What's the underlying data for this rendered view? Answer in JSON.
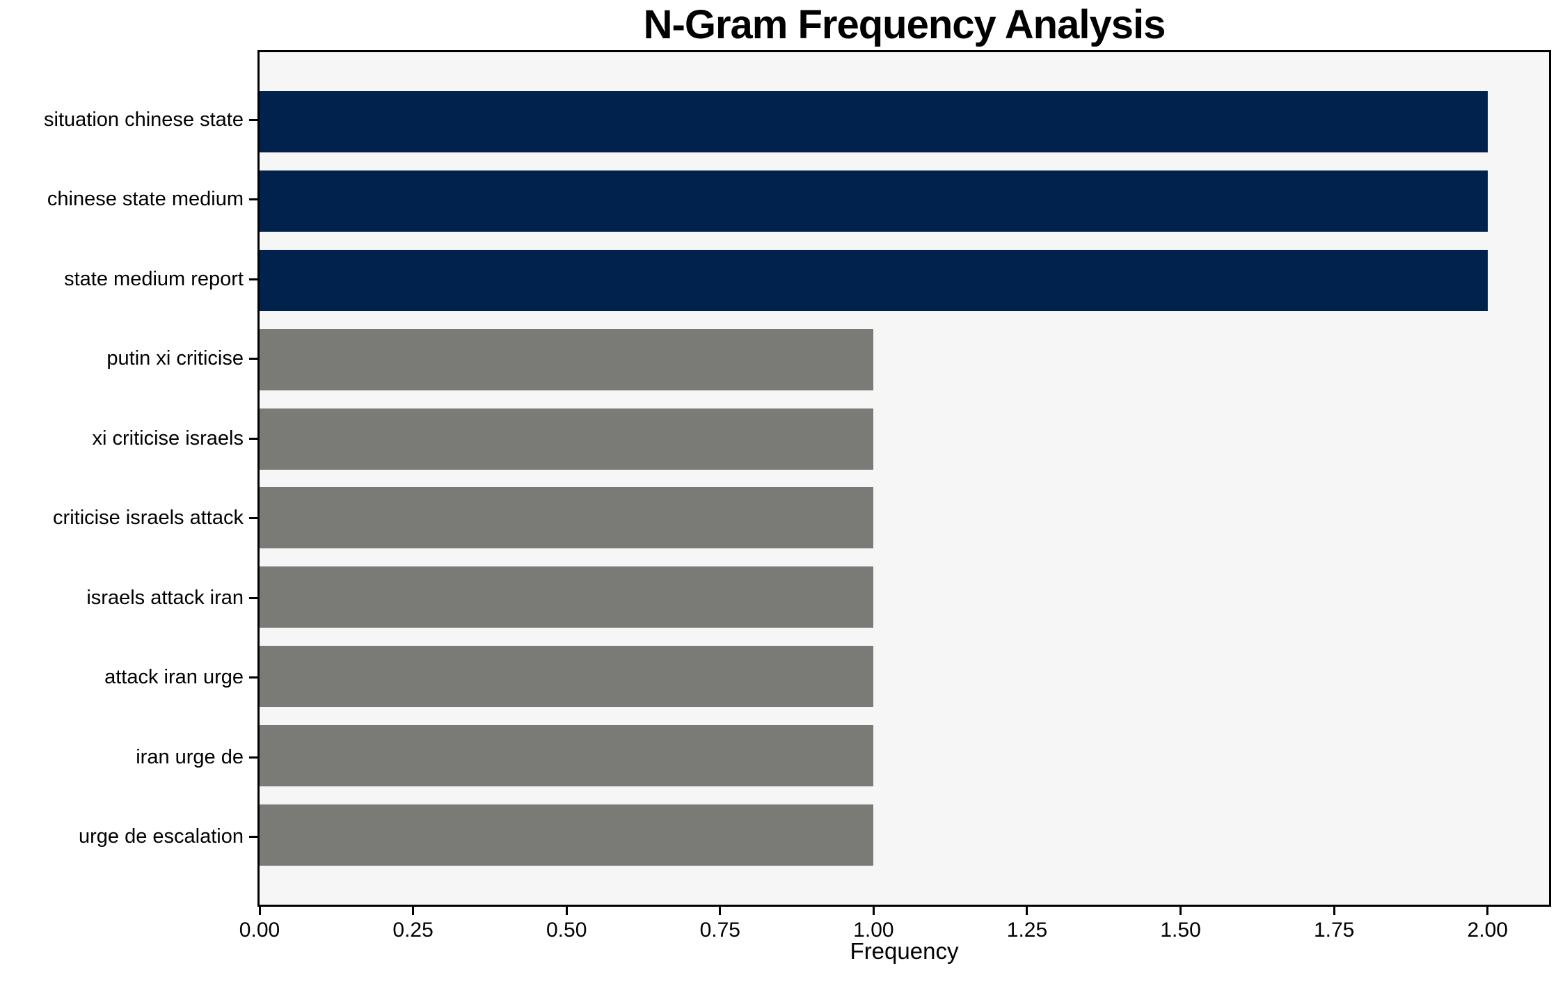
{
  "chart_data": {
    "type": "bar",
    "orientation": "horizontal",
    "title": "N-Gram Frequency Analysis",
    "xlabel": "Frequency",
    "ylabel": "",
    "categories": [
      "situation chinese state",
      "chinese state medium",
      "state medium report",
      "putin xi criticise",
      "xi criticise israels",
      "criticise israels attack",
      "israels attack iran",
      "attack iran urge",
      "iran urge de",
      "urge de escalation"
    ],
    "values": [
      2,
      2,
      2,
      1,
      1,
      1,
      1,
      1,
      1,
      1
    ],
    "bar_colors": [
      "#00224d",
      "#00224d",
      "#00224d",
      "#7a7a76",
      "#7a7a76",
      "#7a7a76",
      "#7a7a76",
      "#7a7a76",
      "#7a7a76",
      "#7a7a76"
    ],
    "xlim": [
      0,
      2.1
    ],
    "xtick_values": [
      0,
      0.25,
      0.5,
      0.75,
      1.0,
      1.25,
      1.5,
      1.75,
      2.0
    ],
    "xtick_labels": [
      "0.00",
      "0.25",
      "0.50",
      "0.75",
      "1.00",
      "1.25",
      "1.50",
      "1.75",
      "2.00"
    ],
    "grid": false,
    "legend": "none",
    "plot_bg": "#f6f6f6",
    "colors": {
      "navy": "#00224d",
      "gray": "#7a7a76",
      "spine": "#000000"
    }
  }
}
